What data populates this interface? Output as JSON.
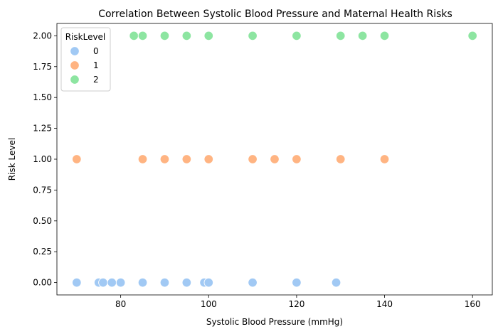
{
  "chart_data": {
    "type": "scatter",
    "title": "Correlation Between Systolic Blood Pressure and Maternal Health Risks",
    "xlabel": "Systolic Blood Pressure (mmHg)",
    "ylabel": "Risk Level",
    "xlim": [
      65.5,
      164.5
    ],
    "ylim": [
      -0.1,
      2.1
    ],
    "xticks": [
      80,
      100,
      120,
      140,
      160
    ],
    "yticks": [
      0.0,
      0.25,
      0.5,
      0.75,
      1.0,
      1.25,
      1.5,
      1.75,
      2.0
    ],
    "ytick_labels": [
      "0.00",
      "0.25",
      "0.50",
      "0.75",
      "1.00",
      "1.25",
      "1.50",
      "1.75",
      "2.00"
    ],
    "grid": false,
    "legend": {
      "title": "RiskLevel",
      "placement": "top-left"
    },
    "series": [
      {
        "name": "0",
        "color": "#a1c9f4",
        "y": 0,
        "x": [
          70,
          75,
          76,
          78,
          80,
          85,
          90,
          95,
          99,
          100,
          110,
          120,
          129
        ]
      },
      {
        "name": "1",
        "color": "#ffb482",
        "y": 1,
        "x": [
          70,
          85,
          90,
          95,
          100,
          110,
          115,
          120,
          130,
          140
        ]
      },
      {
        "name": "2",
        "color": "#8de5a1",
        "y": 2,
        "x": [
          83,
          85,
          90,
          95,
          100,
          110,
          120,
          130,
          135,
          140,
          160
        ]
      }
    ]
  }
}
